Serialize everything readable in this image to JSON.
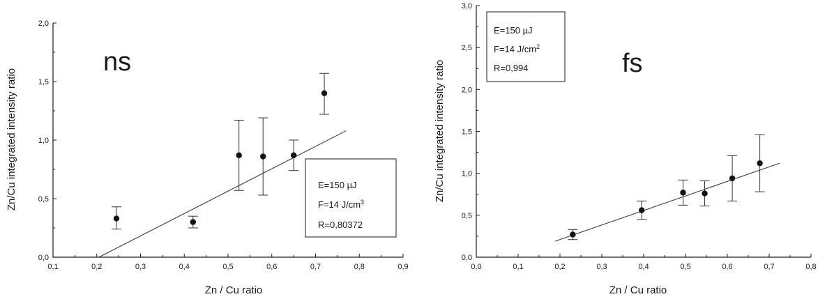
{
  "chart_data": [
    {
      "type": "scatter",
      "label": "ns",
      "xlabel": "Zn / Cu ratio",
      "ylabel": "Zn/Cu integrated intensity ratio",
      "xlim": [
        0.1,
        0.9
      ],
      "ylim": [
        0.0,
        2.0
      ],
      "xticks": [
        "0,1",
        "0,2",
        "0,3",
        "0,4",
        "0,5",
        "0,6",
        "0,7",
        "0,8",
        "0,9"
      ],
      "yticks": [
        "0,0",
        "0,5",
        "1,0",
        "1,5",
        "2,0"
      ],
      "grid": false,
      "points": [
        {
          "x": 0.245,
          "y": 0.33,
          "err_low": 0.24,
          "err_high": 0.43
        },
        {
          "x": 0.42,
          "y": 0.3,
          "err_low": 0.25,
          "err_high": 0.35
        },
        {
          "x": 0.525,
          "y": 0.87,
          "err_low": 0.57,
          "err_high": 1.17
        },
        {
          "x": 0.58,
          "y": 0.86,
          "err_low": 0.53,
          "err_high": 1.19
        },
        {
          "x": 0.65,
          "y": 0.87,
          "err_low": 0.74,
          "err_high": 1.0
        },
        {
          "x": 0.72,
          "y": 1.4,
          "err_low": 1.22,
          "err_high": 1.57
        }
      ],
      "fit_line": {
        "x": [
          0.205,
          0.77
        ],
        "y": [
          0.0,
          1.08
        ]
      },
      "info_box": {
        "lines": [
          "E=150 µJ",
          "F=14 J/cm",
          "R=0,80372"
        ],
        "sup": "3"
      }
    },
    {
      "type": "scatter",
      "label": "fs",
      "xlabel": "Zn / Cu ratio",
      "ylabel": "Zn/Cu integrated intensity ratio",
      "xlim": [
        0.0,
        0.85
      ],
      "ylim": [
        0.0,
        3.0
      ],
      "xticks": [
        "0,0",
        "0,1",
        "0,2",
        "0,3",
        "0,4",
        "0,5",
        "0,6",
        "0,7",
        "0,8"
      ],
      "yticks": [
        "0,0",
        "0,5",
        "1,0",
        "1,5",
        "2,0",
        "2,5",
        "3,0"
      ],
      "grid": false,
      "points": [
        {
          "x": 0.245,
          "y": 0.27,
          "err_low": 0.21,
          "err_high": 0.33
        },
        {
          "x": 0.42,
          "y": 0.56,
          "err_low": 0.45,
          "err_high": 0.67
        },
        {
          "x": 0.525,
          "y": 0.77,
          "err_low": 0.62,
          "err_high": 0.92
        },
        {
          "x": 0.58,
          "y": 0.76,
          "err_low": 0.61,
          "err_high": 0.91
        },
        {
          "x": 0.65,
          "y": 0.94,
          "err_low": 0.67,
          "err_high": 1.21
        },
        {
          "x": 0.72,
          "y": 1.12,
          "err_low": 0.78,
          "err_high": 1.46
        }
      ],
      "fit_line": {
        "x": [
          0.2,
          0.77
        ],
        "y": [
          0.19,
          1.12
        ]
      },
      "info_box": {
        "lines": [
          "E=150 µJ",
          "F=14 J/cm",
          "R=0,994"
        ],
        "sup": "2"
      }
    }
  ]
}
